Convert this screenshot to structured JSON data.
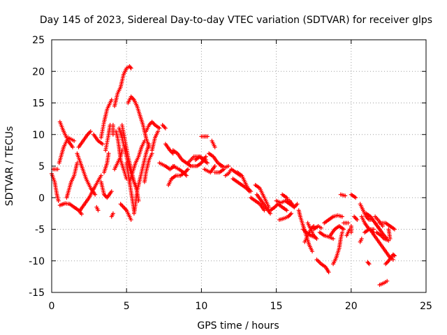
{
  "chart_data": {
    "type": "scatter",
    "title": "Day 145 of 2023, Sidereal Day-to-day VTEC variation (SDTVAR) for receiver glps",
    "xlabel": "GPS time / hours",
    "ylabel": "SDTVAR / TECUs",
    "xlim": [
      0,
      25
    ],
    "ylim": [
      -15,
      25
    ],
    "xticks": [
      "0",
      "5",
      "10",
      "15",
      "20",
      "25"
    ],
    "yticks": [
      "-15",
      "-10",
      "-5",
      "0",
      "5",
      "10",
      "15",
      "20",
      "25"
    ],
    "grid": true,
    "marker": "+",
    "series_color": "#ff0000",
    "traces": [
      [
        [
          0.0,
          3.8
        ],
        [
          0.2,
          2.5
        ],
        [
          0.35,
          0.5
        ],
        [
          0.45,
          -0.5
        ]
      ],
      [
        [
          0.1,
          4.5
        ],
        [
          0.4,
          4.5
        ]
      ],
      [
        [
          0.55,
          12.0
        ],
        [
          0.8,
          10.5
        ],
        [
          1.1,
          9.0
        ],
        [
          1.4,
          8.0
        ]
      ],
      [
        [
          0.5,
          5.5
        ],
        [
          0.8,
          8.0
        ],
        [
          1.1,
          9.5
        ],
        [
          1.5,
          9.0
        ]
      ],
      [
        [
          0.55,
          -1.2
        ],
        [
          0.9,
          -0.9
        ],
        [
          1.2,
          -1.0
        ],
        [
          1.5,
          -1.5
        ],
        [
          1.8,
          -2.0
        ],
        [
          2.0,
          -2.6
        ]
      ],
      [
        [
          1.0,
          0.0
        ],
        [
          1.3,
          2.5
        ],
        [
          1.5,
          3.5
        ],
        [
          1.7,
          5.5
        ]
      ],
      [
        [
          1.8,
          8.0
        ],
        [
          2.1,
          9.0
        ],
        [
          2.4,
          10.0
        ],
        [
          2.6,
          10.5
        ]
      ],
      [
        [
          1.7,
          7.0
        ],
        [
          2.0,
          5.0
        ],
        [
          2.3,
          3.0
        ],
        [
          2.6,
          1.5
        ],
        [
          2.9,
          0.5
        ]
      ],
      [
        [
          1.9,
          -2.0
        ],
        [
          2.2,
          -1.0
        ],
        [
          2.5,
          0.0
        ],
        [
          2.9,
          1.8
        ],
        [
          3.3,
          3.5
        ]
      ],
      [
        [
          2.8,
          10.0
        ],
        [
          3.1,
          9.0
        ],
        [
          3.4,
          8.5
        ]
      ],
      [
        [
          3.0,
          -1.5
        ],
        [
          3.1,
          -2.0
        ]
      ],
      [
        [
          3.3,
          2.5
        ],
        [
          3.5,
          0.5
        ],
        [
          3.7,
          0.0
        ],
        [
          4.0,
          1.0
        ]
      ],
      [
        [
          3.3,
          9.5
        ],
        [
          3.5,
          12.0
        ],
        [
          3.7,
          14.0
        ],
        [
          4.0,
          15.5
        ]
      ],
      [
        [
          3.5,
          4.0
        ],
        [
          3.7,
          5.5
        ],
        [
          3.8,
          7.0
        ]
      ],
      [
        [
          3.6,
          7.5
        ],
        [
          3.8,
          10.0
        ],
        [
          3.9,
          11.5
        ]
      ],
      [
        [
          4.0,
          -3.0
        ],
        [
          4.1,
          -2.5
        ]
      ],
      [
        [
          4.1,
          10.0
        ],
        [
          4.1,
          11.5
        ]
      ],
      [
        [
          4.2,
          14.5
        ],
        [
          4.4,
          16.5
        ],
        [
          4.6,
          17.5
        ],
        [
          4.8,
          19.5
        ],
        [
          5.0,
          20.5
        ],
        [
          5.2,
          20.8
        ],
        [
          5.3,
          20.5
        ]
      ],
      [
        [
          4.2,
          4.5
        ],
        [
          4.4,
          5.5
        ],
        [
          4.6,
          6.5
        ],
        [
          4.7,
          7.5
        ]
      ],
      [
        [
          4.3,
          10.5
        ],
        [
          4.4,
          9.5
        ],
        [
          4.5,
          8.0
        ],
        [
          4.6,
          6.0
        ],
        [
          4.8,
          4.5
        ],
        [
          5.0,
          3.0
        ]
      ],
      [
        [
          4.5,
          11.0
        ],
        [
          4.7,
          9.5
        ],
        [
          4.9,
          7.5
        ],
        [
          5.1,
          5.5
        ],
        [
          5.4,
          3.0
        ],
        [
          5.6,
          2.0
        ],
        [
          5.7,
          1.5
        ]
      ],
      [
        [
          4.6,
          -1.0
        ],
        [
          4.8,
          -1.5
        ],
        [
          5.0,
          -2.0
        ],
        [
          5.2,
          -3.0
        ],
        [
          5.3,
          -3.5
        ]
      ],
      [
        [
          4.7,
          11.5
        ],
        [
          4.9,
          9.0
        ],
        [
          5.1,
          6.5
        ],
        [
          5.3,
          4.5
        ],
        [
          5.5,
          2.5
        ],
        [
          5.7,
          1.0
        ],
        [
          5.8,
          -0.5
        ]
      ],
      [
        [
          5.0,
          5.5
        ],
        [
          5.1,
          4.0
        ],
        [
          5.2,
          2.5
        ],
        [
          5.3,
          1.0
        ],
        [
          5.4,
          -0.5
        ],
        [
          5.5,
          -2.0
        ]
      ],
      [
        [
          5.1,
          15.0
        ],
        [
          5.3,
          16.0
        ],
        [
          5.5,
          15.5
        ],
        [
          5.7,
          14.5
        ],
        [
          5.9,
          13.0
        ],
        [
          6.1,
          11.5
        ],
        [
          6.3,
          9.5
        ],
        [
          6.5,
          8.0
        ]
      ],
      [
        [
          5.2,
          2.5
        ],
        [
          5.4,
          4.0
        ],
        [
          5.6,
          5.5
        ],
        [
          5.8,
          6.5
        ],
        [
          6.0,
          8.0
        ],
        [
          6.2,
          9.0
        ]
      ],
      [
        [
          5.5,
          -2.5
        ],
        [
          5.6,
          -1.0
        ],
        [
          5.7,
          1.0
        ],
        [
          5.9,
          3.0
        ],
        [
          6.1,
          5.0
        ],
        [
          6.3,
          7.0
        ],
        [
          6.5,
          8.5
        ]
      ],
      [
        [
          6.2,
          2.5
        ],
        [
          6.3,
          4.0
        ],
        [
          6.5,
          6.0
        ],
        [
          6.7,
          7.0
        ]
      ],
      [
        [
          6.3,
          10.5
        ],
        [
          6.5,
          11.5
        ],
        [
          6.7,
          12.0
        ],
        [
          6.9,
          11.5
        ],
        [
          7.2,
          11.0
        ]
      ],
      [
        [
          6.7,
          7.5
        ],
        [
          6.9,
          9.5
        ],
        [
          7.1,
          10.5
        ]
      ],
      [
        [
          7.2,
          5.5
        ],
        [
          7.6,
          5.0
        ],
        [
          7.9,
          4.5
        ],
        [
          8.2,
          5.0
        ]
      ],
      [
        [
          7.4,
          11.5
        ],
        [
          7.6,
          11.0
        ]
      ],
      [
        [
          7.6,
          8.5
        ],
        [
          7.9,
          7.5
        ],
        [
          8.1,
          7.0
        ]
      ],
      [
        [
          7.8,
          2.0
        ],
        [
          8.0,
          3.0
        ],
        [
          8.3,
          3.5
        ],
        [
          8.6,
          3.5
        ],
        [
          8.9,
          4.0
        ],
        [
          9.1,
          4.5
        ]
      ],
      [
        [
          8.1,
          5.0
        ],
        [
          8.5,
          4.5
        ],
        [
          8.8,
          4.0
        ],
        [
          9.0,
          3.5
        ]
      ],
      [
        [
          8.1,
          7.5
        ],
        [
          8.4,
          7.0
        ],
        [
          8.7,
          6.0
        ],
        [
          9.0,
          5.5
        ],
        [
          9.3,
          5.0
        ]
      ],
      [
        [
          9.1,
          5.5
        ],
        [
          9.5,
          6.5
        ],
        [
          9.9,
          6.5
        ],
        [
          10.3,
          6.0
        ]
      ],
      [
        [
          9.3,
          5.0
        ],
        [
          9.7,
          5.0
        ],
        [
          10.0,
          5.5
        ],
        [
          10.3,
          6.5
        ]
      ],
      [
        [
          9.6,
          6.0
        ],
        [
          9.9,
          6.5
        ],
        [
          10.1,
          6.0
        ],
        [
          10.4,
          5.5
        ]
      ],
      [
        [
          10.0,
          9.7
        ],
        [
          10.4,
          9.7
        ]
      ],
      [
        [
          10.2,
          4.5
        ],
        [
          10.6,
          4.0
        ],
        [
          10.9,
          5.0
        ]
      ],
      [
        [
          10.5,
          7.0
        ],
        [
          10.8,
          6.5
        ],
        [
          11.1,
          5.5
        ],
        [
          11.4,
          5.0
        ]
      ],
      [
        [
          10.7,
          9.0
        ],
        [
          10.9,
          8.0
        ]
      ],
      [
        [
          10.9,
          4.0
        ],
        [
          11.2,
          4.0
        ],
        [
          11.5,
          4.5
        ]
      ],
      [
        [
          11.3,
          5.0
        ],
        [
          11.6,
          4.8
        ],
        [
          11.8,
          5.0
        ]
      ],
      [
        [
          11.6,
          3.5
        ],
        [
          11.8,
          3.8
        ],
        [
          12.0,
          4.5
        ],
        [
          12.3,
          4.0
        ],
        [
          12.6,
          3.5
        ]
      ],
      [
        [
          12.1,
          3.0
        ],
        [
          12.4,
          2.5
        ],
        [
          12.7,
          2.0
        ],
        [
          13.0,
          1.5
        ],
        [
          13.2,
          1.0
        ]
      ],
      [
        [
          12.4,
          4.0
        ],
        [
          12.7,
          3.5
        ],
        [
          12.9,
          2.5
        ],
        [
          13.1,
          1.5
        ],
        [
          13.3,
          1.0
        ]
      ],
      [
        [
          13.3,
          0.0
        ],
        [
          13.6,
          -0.5
        ],
        [
          13.9,
          -1.0
        ],
        [
          14.2,
          -2.0
        ]
      ],
      [
        [
          13.6,
          2.0
        ],
        [
          13.9,
          1.5
        ],
        [
          14.1,
          0.5
        ],
        [
          14.3,
          -0.5
        ],
        [
          14.5,
          -1.5
        ]
      ],
      [
        [
          13.7,
          0.5
        ],
        [
          14.0,
          -0.5
        ],
        [
          14.3,
          -1.5
        ],
        [
          14.6,
          -2.5
        ]
      ],
      [
        [
          14.6,
          -2.0
        ],
        [
          14.9,
          -1.5
        ],
        [
          15.1,
          -1.0
        ],
        [
          15.4,
          -1.5
        ],
        [
          15.7,
          -2.0
        ]
      ],
      [
        [
          15.0,
          -0.5
        ],
        [
          15.3,
          -0.8
        ],
        [
          15.6,
          -0.5
        ],
        [
          15.9,
          -1.0
        ]
      ],
      [
        [
          15.2,
          -3.5
        ],
        [
          15.5,
          -3.3
        ],
        [
          15.8,
          -3.0
        ],
        [
          16.0,
          -2.5
        ]
      ],
      [
        [
          15.4,
          0.5
        ],
        [
          15.7,
          0.0
        ],
        [
          15.9,
          -1.0
        ],
        [
          16.2,
          -1.5
        ]
      ],
      [
        [
          15.9,
          -0.5
        ],
        [
          16.2,
          -1.5
        ],
        [
          16.4,
          -1.0
        ]
      ],
      [
        [
          16.5,
          -2.0
        ],
        [
          16.6,
          -3.0
        ],
        [
          16.8,
          -4.5
        ],
        [
          17.0,
          -6.0
        ],
        [
          17.2,
          -7.5
        ],
        [
          17.4,
          -8.5
        ]
      ],
      [
        [
          16.8,
          -5.0
        ],
        [
          17.0,
          -5.5
        ],
        [
          17.3,
          -6.0
        ],
        [
          17.6,
          -6.3
        ]
      ],
      [
        [
          16.9,
          -7.0
        ],
        [
          17.1,
          -6.0
        ],
        [
          17.3,
          -5.0
        ],
        [
          17.5,
          -4.5
        ]
      ],
      [
        [
          17.1,
          -4.0
        ],
        [
          17.3,
          -5.0
        ],
        [
          17.5,
          -6.0
        ],
        [
          17.7,
          -6.5
        ]
      ],
      [
        [
          17.5,
          -5.0
        ],
        [
          17.8,
          -4.5
        ],
        [
          18.0,
          -4.8
        ]
      ],
      [
        [
          17.7,
          -9.8
        ],
        [
          18.0,
          -10.5
        ],
        [
          18.3,
          -11.0
        ],
        [
          18.5,
          -11.8
        ]
      ],
      [
        [
          17.9,
          -5.5
        ],
        [
          18.2,
          -6.0
        ],
        [
          18.5,
          -6.2
        ],
        [
          18.8,
          -6.5
        ]
      ],
      [
        [
          18.2,
          -4.0
        ],
        [
          18.5,
          -3.5
        ],
        [
          18.8,
          -3.0
        ],
        [
          19.1,
          -2.8
        ],
        [
          19.4,
          -3.0
        ]
      ],
      [
        [
          18.6,
          -6.0
        ],
        [
          18.9,
          -5.0
        ],
        [
          19.2,
          -4.5
        ],
        [
          19.5,
          -5.0
        ]
      ],
      [
        [
          18.8,
          -10.5
        ],
        [
          19.0,
          -9.5
        ],
        [
          19.2,
          -8.0
        ],
        [
          19.3,
          -6.5
        ],
        [
          19.4,
          -5.5
        ]
      ],
      [
        [
          19.5,
          -4.0
        ],
        [
          19.8,
          -4.0
        ]
      ],
      [
        [
          19.7,
          -6.0
        ],
        [
          19.9,
          -5.0
        ]
      ],
      [
        [
          19.3,
          0.5
        ],
        [
          19.6,
          0.3
        ]
      ],
      [
        [
          20.0,
          -5.5
        ],
        [
          20.0,
          -4.5
        ]
      ],
      [
        [
          20.0,
          0.5
        ],
        [
          20.3,
          0.0
        ]
      ],
      [
        [
          20.2,
          -3.0
        ],
        [
          20.4,
          -3.5
        ]
      ],
      [
        [
          20.6,
          -1.0
        ],
        [
          20.8,
          -2.0
        ],
        [
          21.0,
          -3.0
        ],
        [
          21.2,
          -3.5
        ],
        [
          21.4,
          -3.5
        ]
      ],
      [
        [
          20.7,
          -3.0
        ],
        [
          20.9,
          -4.0
        ],
        [
          21.2,
          -5.0
        ],
        [
          21.5,
          -5.5
        ]
      ],
      [
        [
          20.6,
          -7.0
        ],
        [
          20.7,
          -6.5
        ]
      ],
      [
        [
          20.9,
          -5.5
        ],
        [
          21.2,
          -5.0
        ],
        [
          21.5,
          -5.0
        ]
      ],
      [
        [
          21.0,
          -2.5
        ],
        [
          21.3,
          -3.0
        ],
        [
          21.6,
          -4.0
        ],
        [
          21.9,
          -5.0
        ]
      ],
      [
        [
          21.1,
          -10.2
        ],
        [
          21.2,
          -10.5
        ]
      ],
      [
        [
          21.4,
          -5.5
        ],
        [
          21.7,
          -6.5
        ],
        [
          22.0,
          -7.5
        ],
        [
          22.3,
          -8.5
        ],
        [
          22.6,
          -9.5
        ],
        [
          22.8,
          -9.8
        ]
      ],
      [
        [
          21.6,
          -4.0
        ],
        [
          21.9,
          -5.0
        ],
        [
          22.2,
          -6.0
        ],
        [
          22.4,
          -6.5
        ]
      ],
      [
        [
          21.6,
          -3.0
        ],
        [
          21.9,
          -3.8
        ],
        [
          22.1,
          -4.5
        ]
      ],
      [
        [
          21.7,
          -5.5
        ],
        [
          22.0,
          -6.0
        ],
        [
          22.2,
          -6.5
        ],
        [
          22.5,
          -6.8
        ]
      ],
      [
        [
          21.9,
          -4.0
        ],
        [
          22.3,
          -4.0
        ],
        [
          22.6,
          -4.5
        ],
        [
          22.9,
          -5.0
        ]
      ],
      [
        [
          21.9,
          -13.8
        ],
        [
          22.2,
          -13.5
        ],
        [
          22.4,
          -13.2
        ]
      ],
      [
        [
          22.3,
          -10.5
        ],
        [
          22.5,
          -10.0
        ],
        [
          22.8,
          -9.0
        ],
        [
          22.9,
          -9.2
        ]
      ],
      [
        [
          22.5,
          -5.0
        ],
        [
          22.6,
          -6.5
        ]
      ]
    ]
  }
}
